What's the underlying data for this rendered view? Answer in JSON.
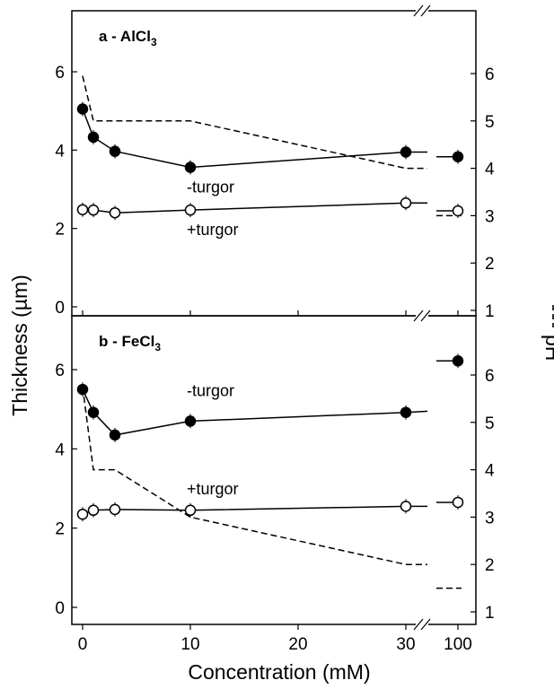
{
  "figure": {
    "ylabel_left": "Thickness (µm)",
    "ylabel_right": "pH",
    "xlabel": "Concentration (mM)",
    "x_ticks": [
      "0",
      "10",
      "20",
      "30",
      "100"
    ]
  },
  "chart_data": [
    {
      "type": "line",
      "panel_label": "a - AlCl",
      "panel_label_sub": "3",
      "ylim_left": [
        0,
        6.5
      ],
      "ylim_right": [
        1,
        6.5
      ],
      "yticks_left": [
        0,
        2,
        4,
        6
      ],
      "yticks_right": [
        1,
        2,
        3,
        4,
        5,
        6
      ],
      "series": [
        {
          "label": "-turgor",
          "marker": "filled",
          "axis": "left",
          "points": [
            [
              0,
              5.05
            ],
            [
              1,
              4.33
            ],
            [
              3,
              3.97
            ],
            [
              10,
              3.56
            ],
            [
              30,
              3.95
            ]
          ],
          "line_to": 32,
          "line_end_y": 3.95,
          "break_points": [
            [
              100,
              3.83
            ]
          ]
        },
        {
          "label": "+turgor",
          "marker": "open",
          "axis": "left",
          "points": [
            [
              0,
              2.48
            ],
            [
              1,
              2.47
            ],
            [
              3,
              2.4
            ],
            [
              10,
              2.47
            ],
            [
              30,
              2.65
            ]
          ],
          "line_to": 32,
          "line_end_y": 2.65,
          "break_points": [
            [
              100,
              2.45
            ]
          ]
        }
      ],
      "ph": {
        "axis": "right",
        "points": [
          [
            0,
            5.95
          ],
          [
            1,
            5.0
          ],
          [
            10,
            5.0
          ],
          [
            30,
            4.0
          ],
          [
            32,
            4.0
          ]
        ],
        "break_points": [
          [
            100,
            3.0
          ]
        ]
      }
    },
    {
      "type": "line",
      "panel_label": "b - FeCl",
      "panel_label_sub": "3",
      "ylim_left": [
        0,
        6.5
      ],
      "ylim_right": [
        1,
        6.5
      ],
      "yticks_left": [
        0,
        2,
        4,
        6
      ],
      "yticks_right": [
        1,
        2,
        3,
        4,
        5,
        6
      ],
      "series": [
        {
          "label": "-turgor",
          "marker": "filled",
          "axis": "left",
          "points": [
            [
              0,
              5.5
            ],
            [
              1,
              4.92
            ],
            [
              3,
              4.35
            ],
            [
              10,
              4.7
            ],
            [
              30,
              4.92
            ]
          ],
          "line_to": 32,
          "line_end_y": 4.95,
          "break_points": [
            [
              100,
              6.22
            ]
          ]
        },
        {
          "label": "+turgor",
          "marker": "open",
          "axis": "left",
          "points": [
            [
              0,
              2.35
            ],
            [
              1,
              2.45
            ],
            [
              3,
              2.47
            ],
            [
              10,
              2.45
            ],
            [
              30,
              2.55
            ]
          ],
          "line_to": 32,
          "line_end_y": 2.55,
          "break_points": [
            [
              100,
              2.65
            ]
          ]
        }
      ],
      "ph": {
        "axis": "right",
        "points": [
          [
            0,
            5.75
          ],
          [
            1,
            4.0
          ],
          [
            3,
            4.0
          ],
          [
            10,
            3.0
          ],
          [
            30,
            2.0
          ],
          [
            32,
            2.0
          ]
        ],
        "break_points": [
          [
            100,
            1.5
          ]
        ]
      }
    }
  ]
}
